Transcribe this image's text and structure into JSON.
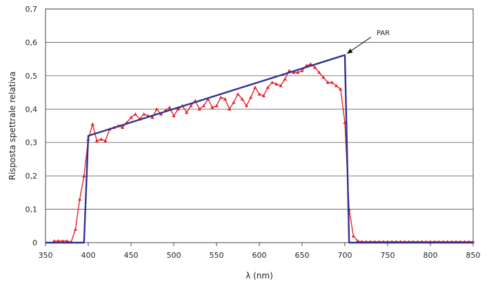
{
  "chart_data": {
    "type": "line",
    "title": "",
    "xlabel": "λ (nm)",
    "ylabel": "Risposta spettrale relativa",
    "xlim": [
      350,
      850
    ],
    "ylim": [
      0,
      0.7
    ],
    "xticks": [
      "350",
      "400",
      "450",
      "500",
      "550",
      "600",
      "650",
      "700",
      "750",
      "800",
      "850"
    ],
    "yticks": [
      "0",
      "0,1",
      "0,2",
      "0,3",
      "0,4",
      "0,5",
      "0,6",
      "0,7"
    ],
    "grid": "horizontal",
    "annotation": {
      "text": "PAR",
      "x": 700,
      "y": 0.562
    },
    "series": [
      {
        "color": "#e8202a",
        "marker": "triangle",
        "x": [
          360,
          365,
          370,
          375,
          380,
          385,
          390,
          395,
          400,
          405,
          410,
          415,
          420,
          425,
          430,
          435,
          440,
          445,
          450,
          455,
          460,
          465,
          470,
          475,
          480,
          485,
          490,
          495,
          500,
          505,
          510,
          515,
          520,
          525,
          530,
          535,
          540,
          545,
          550,
          555,
          560,
          565,
          570,
          575,
          580,
          585,
          590,
          595,
          600,
          605,
          610,
          615,
          620,
          625,
          630,
          635,
          640,
          645,
          650,
          655,
          660,
          665,
          670,
          675,
          680,
          685,
          690,
          695,
          700,
          705,
          710,
          715,
          720,
          725,
          730,
          735,
          740,
          745,
          750,
          755,
          760,
          765,
          770,
          775,
          780,
          785,
          790,
          795,
          800,
          805,
          810,
          815,
          820,
          825,
          830,
          835,
          840,
          845,
          850
        ],
        "values": [
          0.005,
          0.005,
          0.005,
          0.005,
          0.002,
          0.04,
          0.13,
          0.2,
          0.31,
          0.355,
          0.305,
          0.31,
          0.305,
          0.34,
          0.345,
          0.35,
          0.345,
          0.36,
          0.375,
          0.385,
          0.37,
          0.385,
          0.38,
          0.375,
          0.4,
          0.385,
          0.395,
          0.405,
          0.38,
          0.4,
          0.41,
          0.39,
          0.41,
          0.425,
          0.4,
          0.41,
          0.43,
          0.405,
          0.41,
          0.435,
          0.43,
          0.4,
          0.42,
          0.445,
          0.43,
          0.41,
          0.435,
          0.465,
          0.445,
          0.44,
          0.465,
          0.48,
          0.475,
          0.47,
          0.49,
          0.515,
          0.51,
          0.51,
          0.515,
          0.53,
          0.535,
          0.525,
          0.51,
          0.495,
          0.48,
          0.48,
          0.47,
          0.46,
          0.36,
          0.1,
          0.02,
          0.005,
          0.003,
          0.003,
          0.003,
          0.003,
          0.003,
          0.003,
          0.003,
          0.003,
          0.003,
          0.003,
          0.003,
          0.003,
          0.003,
          0.003,
          0.003,
          0.003,
          0.003,
          0.003,
          0.003,
          0.003,
          0.003,
          0.003,
          0.003,
          0.003,
          0.003,
          0.003,
          0.003
        ]
      },
      {
        "name": "PAR",
        "color": "#2e3192",
        "marker": "none",
        "x": [
          350,
          395,
          400,
          700,
          705,
          710,
          850
        ],
        "values": [
          0,
          0,
          0.32,
          0.562,
          0,
          0,
          0
        ]
      }
    ]
  }
}
